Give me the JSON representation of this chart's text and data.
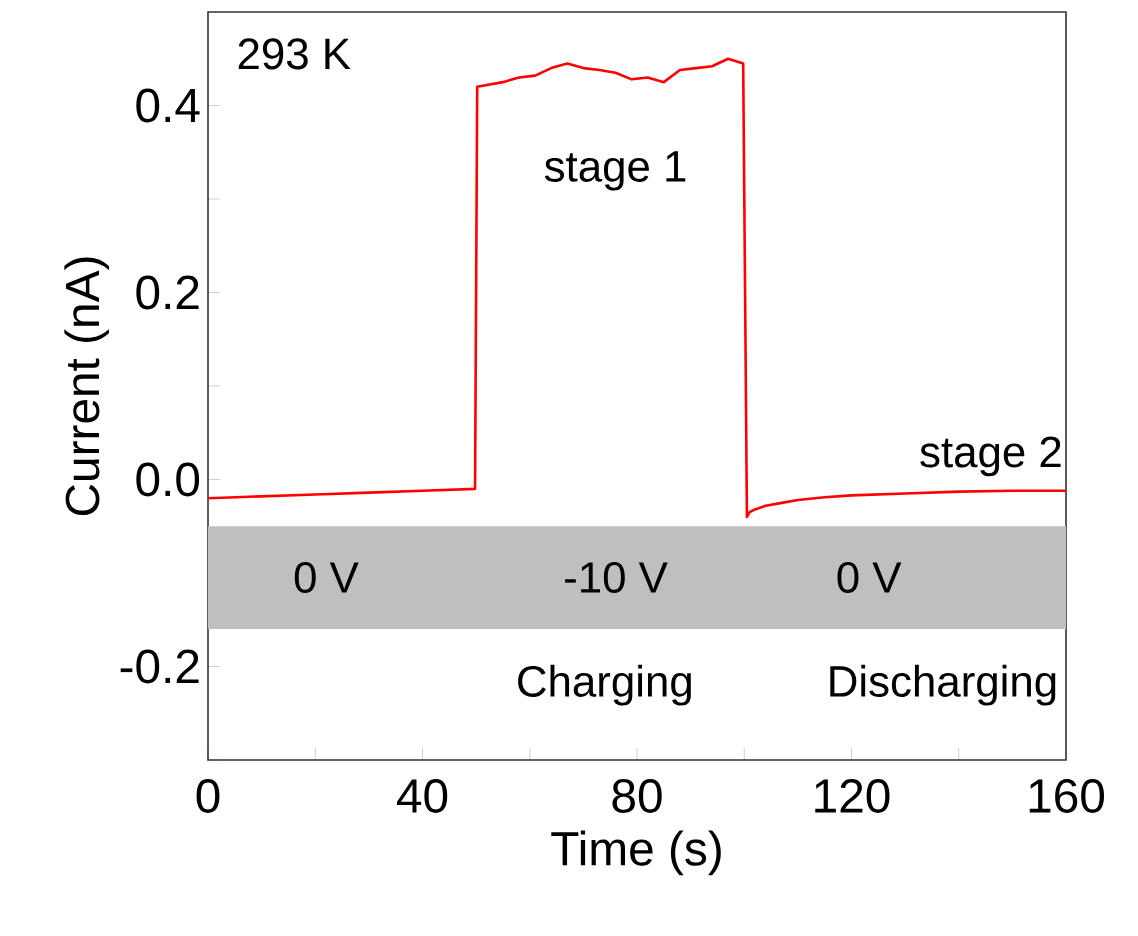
{
  "chart_data": {
    "type": "line",
    "xlabel": "Time (s)",
    "ylabel": "Current (nA)",
    "xlim": [
      0,
      160
    ],
    "ylim": [
      -0.3,
      0.5
    ],
    "xticks": [
      0,
      {
        "value": 20,
        "label": null
      },
      40,
      {
        "value": 60,
        "label": null
      },
      80,
      {
        "value": 100,
        "label": null
      },
      120,
      {
        "value": 140,
        "label": null
      },
      160
    ],
    "yticks": [
      {
        "value": -0.3,
        "label": null
      },
      -0.2,
      {
        "value": -0.1,
        "label": null
      },
      {
        "value": 0,
        "label": "0.0"
      },
      {
        "value": 0.1,
        "label": null
      },
      0.2,
      {
        "value": 0.3,
        "label": null
      },
      0.4
    ],
    "series": [
      {
        "color": "#ff0000",
        "x": [
          0,
          10,
          20,
          30,
          40,
          49.8,
          50.2,
          52,
          55,
          58,
          61,
          64,
          67,
          70,
          73,
          76,
          79,
          82,
          85,
          88,
          91,
          94,
          97,
          99.8,
          100.5,
          101,
          102,
          104,
          107,
          110,
          115,
          120,
          130,
          140,
          150,
          160
        ],
        "values": [
          -0.02,
          -0.018,
          -0.016,
          -0.014,
          -0.012,
          -0.01,
          0.42,
          0.422,
          0.425,
          0.43,
          0.432,
          0.44,
          0.445,
          0.44,
          0.438,
          0.435,
          0.428,
          0.43,
          0.425,
          0.438,
          0.44,
          0.442,
          0.45,
          0.445,
          -0.04,
          -0.035,
          -0.032,
          -0.028,
          -0.025,
          -0.022,
          -0.019,
          -0.017,
          -0.015,
          -0.013,
          -0.012,
          -0.012
        ]
      }
    ],
    "bands": [
      {
        "axis": "y",
        "from": -0.16,
        "to": -0.05,
        "color": "#bfbfbf"
      }
    ],
    "annotations": [
      "293 K",
      "stage 1",
      "stage 2",
      "0 V",
      "-10 V",
      "0 V",
      "Charging",
      "Discharging"
    ],
    "grid": false,
    "marker": "none",
    "line_style": "solid"
  }
}
